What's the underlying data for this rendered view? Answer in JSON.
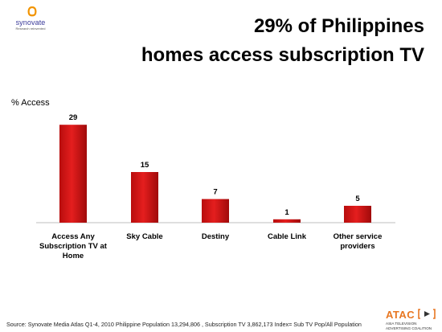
{
  "logo": {
    "name": "synovate",
    "tagline": "Research reinvented",
    "icon": "synovate-logo-icon"
  },
  "title": {
    "line1": "29% of Philippines",
    "line2": "homes access subscription TV"
  },
  "chart_data": {
    "type": "bar",
    "ylabel": "% Access",
    "categories": [
      [
        "Access Any",
        "Subscription TV at",
        "Home"
      ],
      [
        "Sky Cable"
      ],
      [
        "Destiny"
      ],
      [
        "Cable Link"
      ],
      [
        "Other service",
        "providers"
      ]
    ],
    "values": [
      29,
      15,
      7,
      1,
      5
    ],
    "ylim": [
      0,
      35
    ],
    "grid": false,
    "bar_color": "#e41e1e"
  },
  "footer": {
    "source": "Source: Synovate Media Atlas Q1-4, 2010   Philippine Population 13,294,806  , Subscription TV 3,862,173  Index= Sub TV Pop/All Population"
  },
  "atac": {
    "wordmark": "ATAC",
    "icon": "play-bracket-icon",
    "line1": "ASIA TELEVISION",
    "line2": "ADVERTISING COALITION"
  }
}
